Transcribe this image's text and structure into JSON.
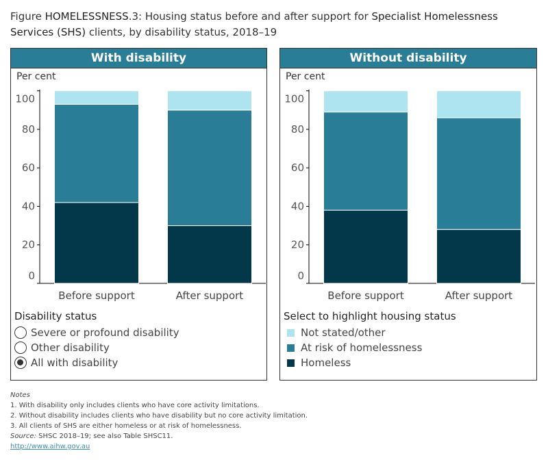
{
  "title": {
    "prefix": "Figure ",
    "bold1": "HOMELESSNESS",
    "mid": ".3: Housing status before and after support for ",
    "bold2": "Specialist Homelessness Services (SHS)",
    "suffix": " clients, by disability status, 2018–19"
  },
  "colors": {
    "Homeless": "#03384a",
    "At risk of homelessness": "#2a7d96",
    "Not stated/other": "#aee4ef",
    "header": "#2a7d96"
  },
  "chart_data": [
    {
      "type": "bar",
      "stacked": true,
      "title": "With disability",
      "ylabel": "Per cent",
      "ylim": [
        0,
        100
      ],
      "yticks": [
        "0",
        "20",
        "40",
        "60",
        "80",
        "100"
      ],
      "categories": [
        "Before support",
        "After support"
      ],
      "series": [
        {
          "name": "Homeless",
          "values": [
            42,
            30
          ]
        },
        {
          "name": "At risk of homelessness",
          "values": [
            51,
            60
          ]
        },
        {
          "name": "Not stated/other",
          "values": [
            7,
            10
          ]
        }
      ]
    },
    {
      "type": "bar",
      "stacked": true,
      "title": "Without disability",
      "ylabel": "Per cent",
      "ylim": [
        0,
        100
      ],
      "yticks": [
        "0",
        "20",
        "40",
        "60",
        "80",
        "100"
      ],
      "categories": [
        "Before support",
        "After support"
      ],
      "series": [
        {
          "name": "Homeless",
          "values": [
            38,
            28
          ]
        },
        {
          "name": "At risk of homelessness",
          "values": [
            51,
            58
          ]
        },
        {
          "name": "Not stated/other",
          "values": [
            11,
            14
          ]
        }
      ]
    }
  ],
  "left_legend": {
    "title": "Disability status",
    "options": [
      {
        "label": "Severe or profound disability",
        "selected": false
      },
      {
        "label": "Other disability",
        "selected": false
      },
      {
        "label": "All with disability",
        "selected": true
      }
    ]
  },
  "right_legend": {
    "title": "Select to highlight housing status",
    "items": [
      "Not stated/other",
      "At risk of homelessness",
      "Homeless"
    ]
  },
  "notes": {
    "heading": "Notes",
    "lines": [
      "1. With disability only includes clients who have core activity limitations.",
      "2. Without disability includes clients who have disability but no core activity limitation.",
      "3. All clients of SHS are either homeless or at risk of homelessness."
    ],
    "source_label": "Source:",
    "source_text": " SHSC 2018–19; see also Table SHSC11.",
    "link": "http://www.aihw.gov.au"
  }
}
